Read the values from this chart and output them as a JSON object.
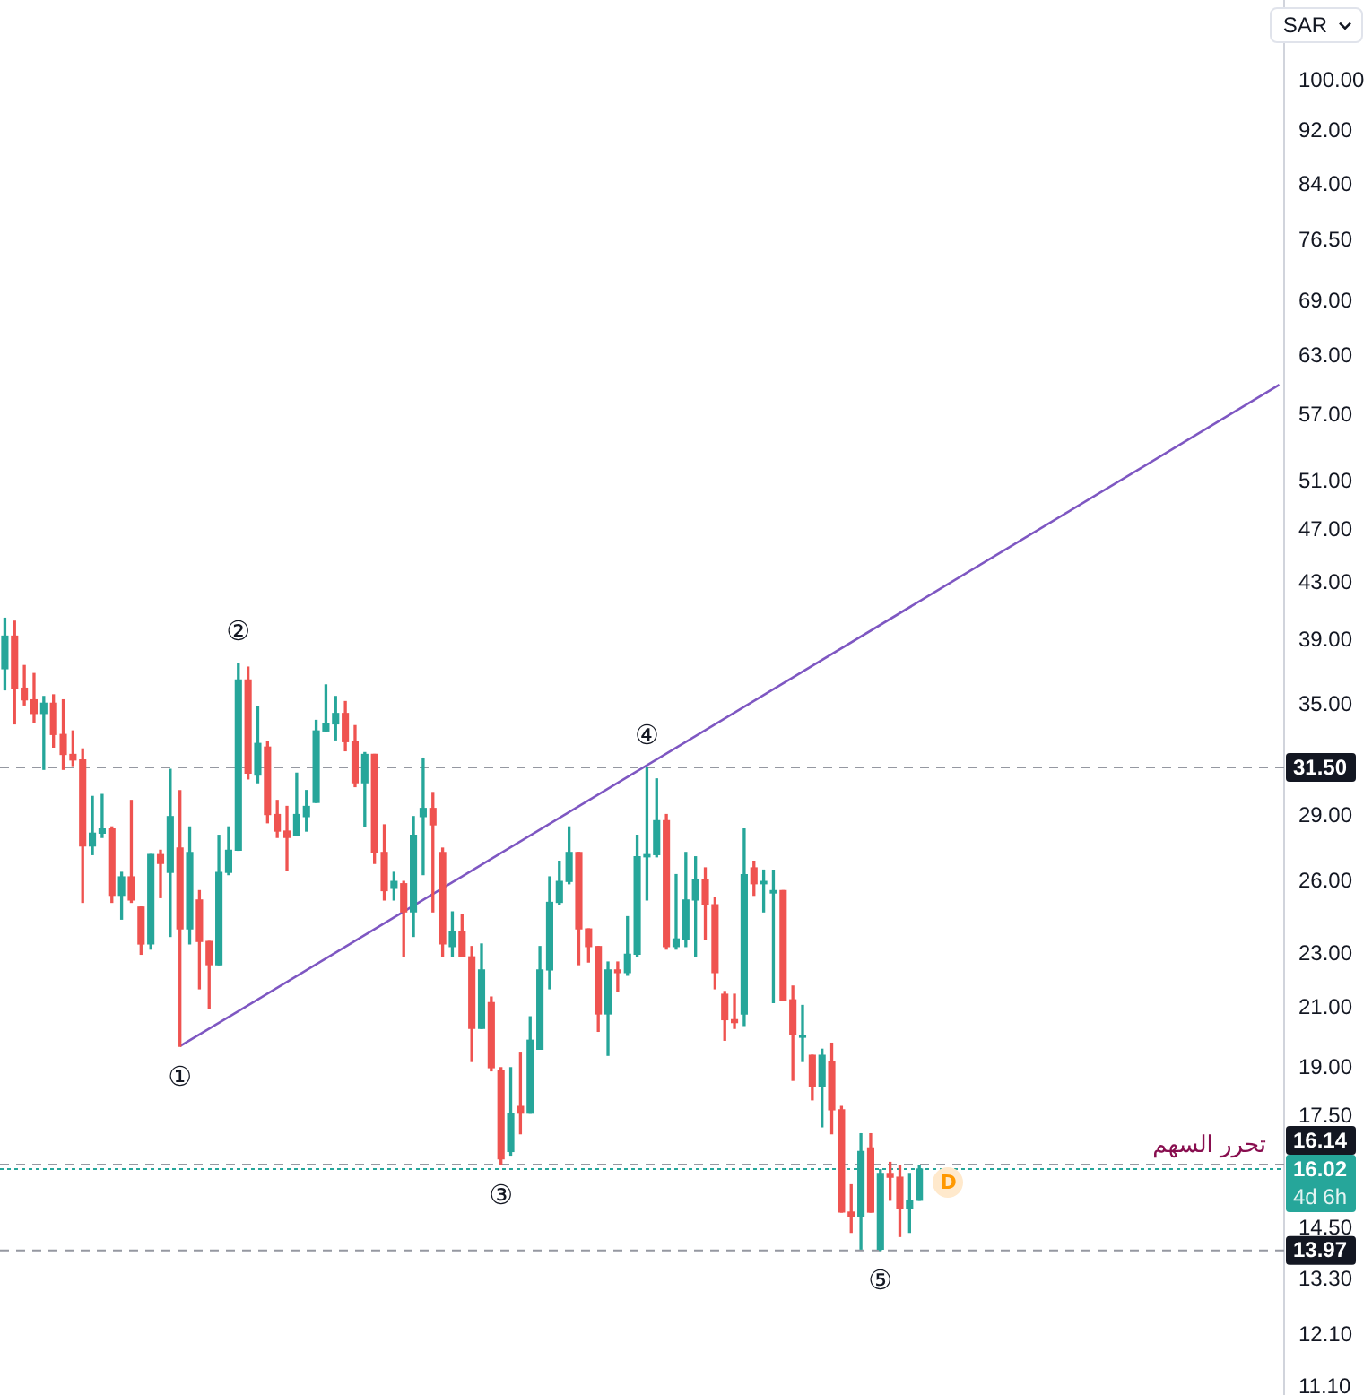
{
  "chart_data": {
    "type": "candlestick",
    "categories": [
      null,
      null,
      null,
      null,
      null,
      null,
      null,
      null,
      null,
      null,
      null,
      null,
      null,
      null,
      null,
      null,
      null,
      null,
      null,
      null,
      null,
      null,
      null,
      null,
      null,
      null,
      null,
      null,
      null,
      null,
      null,
      null,
      null,
      null,
      null,
      null,
      null,
      null,
      null,
      null,
      null,
      null,
      null,
      null,
      null,
      null,
      null,
      null,
      null,
      null,
      null,
      null,
      null,
      null,
      null,
      null,
      null,
      null,
      null,
      null,
      null,
      null,
      null,
      null,
      null,
      null,
      null,
      null,
      null,
      null,
      null,
      null,
      null,
      null,
      null,
      null,
      null,
      null,
      null,
      null,
      null,
      null,
      null,
      null,
      null,
      null,
      null,
      null,
      null,
      null,
      null,
      null,
      null,
      null,
      null,
      null,
      null,
      null,
      null,
      null,
      null,
      null,
      null,
      null,
      null,
      null,
      null,
      null,
      null,
      null,
      null,
      null,
      null,
      null,
      null,
      null,
      null,
      null,
      null,
      null,
      null,
      null,
      null,
      null,
      null,
      null,
      null,
      null,
      null,
      null,
      null,
      null
    ],
    "ohlc": [
      [
        37.2,
        40.5,
        35.9,
        39.3
      ],
      [
        39.3,
        40.3,
        33.9,
        36.0
      ],
      [
        36.0,
        37.4,
        35.0,
        35.3
      ],
      [
        35.3,
        36.9,
        34.0,
        34.5
      ],
      [
        34.5,
        35.5,
        31.4,
        35.1
      ],
      [
        35.1,
        35.6,
        32.6,
        33.3
      ],
      [
        33.3,
        35.3,
        31.4,
        32.2
      ],
      [
        32.2,
        33.5,
        31.6,
        31.9
      ],
      [
        31.9,
        32.5,
        25.1,
        27.6
      ],
      [
        27.6,
        30.0,
        27.2,
        28.2
      ],
      [
        28.2,
        30.1,
        28.0,
        28.4
      ],
      [
        28.4,
        28.5,
        25.1,
        25.4
      ],
      [
        25.4,
        26.4,
        24.4,
        26.2
      ],
      [
        26.2,
        29.8,
        25.1,
        25.2
      ],
      [
        24.9,
        24.9,
        23.0,
        23.4
      ],
      [
        23.4,
        27.2,
        23.2,
        27.2
      ],
      [
        27.2,
        27.4,
        25.3,
        26.8
      ],
      [
        26.4,
        31.4,
        23.7,
        29.0
      ],
      [
        27.5,
        30.3,
        19.7,
        24.0
      ],
      [
        24.0,
        28.5,
        23.4,
        27.3
      ],
      [
        25.2,
        25.6,
        21.7,
        23.5
      ],
      [
        23.5,
        23.5,
        21.0,
        22.6
      ],
      [
        22.6,
        28.1,
        22.6,
        26.4
      ],
      [
        26.4,
        28.5,
        26.3,
        27.4
      ],
      [
        27.4,
        37.5,
        27.4,
        36.5
      ],
      [
        36.5,
        37.3,
        30.9,
        31.2
      ],
      [
        31.1,
        34.9,
        30.7,
        32.8
      ],
      [
        32.6,
        32.9,
        28.7,
        29.1
      ],
      [
        29.1,
        29.8,
        28.0,
        28.3
      ],
      [
        28.3,
        29.5,
        26.5,
        28.0
      ],
      [
        28.1,
        31.2,
        28.1,
        29.1
      ],
      [
        29.0,
        30.3,
        28.3,
        29.5
      ],
      [
        29.7,
        34.1,
        29.7,
        33.5
      ],
      [
        33.5,
        36.2,
        33.5,
        33.9
      ],
      [
        33.9,
        35.5,
        33.0,
        34.5
      ],
      [
        34.5,
        35.2,
        32.4,
        32.9
      ],
      [
        32.9,
        33.8,
        30.5,
        30.7
      ],
      [
        30.7,
        32.3,
        28.5,
        32.2
      ],
      [
        32.2,
        32.2,
        26.8,
        27.3
      ],
      [
        27.3,
        28.6,
        25.2,
        25.6
      ],
      [
        25.7,
        26.4,
        25.2,
        26.0
      ],
      [
        25.9,
        26.0,
        22.9,
        24.7
      ],
      [
        24.7,
        29.0,
        23.7,
        28.1
      ],
      [
        29.0,
        32.0,
        26.3,
        29.4
      ],
      [
        29.4,
        30.2,
        24.7,
        28.6
      ],
      [
        27.3,
        27.5,
        22.9,
        23.4
      ],
      [
        23.3,
        24.7,
        22.9,
        23.9
      ],
      [
        23.9,
        24.6,
        22.9,
        22.9
      ],
      [
        22.9,
        23.3,
        19.2,
        20.3
      ],
      [
        20.3,
        23.4,
        20.3,
        22.4
      ],
      [
        21.2,
        21.4,
        18.9,
        19.0
      ],
      [
        18.9,
        19.0,
        16.14,
        16.3
      ],
      [
        16.5,
        19.0,
        16.4,
        17.6
      ],
      [
        17.8,
        19.5,
        17.0,
        17.6
      ],
      [
        17.6,
        20.7,
        17.6,
        19.9
      ],
      [
        19.6,
        23.3,
        19.6,
        22.4
      ],
      [
        22.4,
        26.2,
        21.7,
        25.1
      ],
      [
        25.1,
        26.9,
        25.0,
        26.0
      ],
      [
        26.0,
        28.5,
        25.9,
        27.3
      ],
      [
        27.3,
        27.3,
        22.6,
        24.0
      ],
      [
        24.0,
        24.0,
        22.7,
        23.3
      ],
      [
        23.3,
        23.3,
        20.2,
        20.8
      ],
      [
        20.8,
        22.7,
        19.4,
        22.4
      ],
      [
        22.4,
        22.7,
        21.6,
        22.3
      ],
      [
        22.3,
        24.5,
        22.2,
        23.0
      ],
      [
        23.0,
        28.1,
        22.9,
        27.1
      ],
      [
        27.1,
        31.5,
        25.2,
        27.2
      ],
      [
        27.2,
        30.9,
        27.1,
        28.8
      ],
      [
        28.8,
        29.1,
        23.2,
        23.3
      ],
      [
        23.3,
        26.3,
        23.2,
        23.6
      ],
      [
        23.6,
        27.3,
        23.3,
        25.2
      ],
      [
        25.2,
        27.1,
        22.9,
        26.1
      ],
      [
        26.1,
        26.6,
        23.6,
        25.0
      ],
      [
        25.0,
        25.3,
        21.7,
        22.3
      ],
      [
        21.5,
        21.6,
        19.9,
        20.6
      ],
      [
        20.6,
        21.5,
        20.3,
        20.5
      ],
      [
        20.8,
        28.4,
        20.4,
        26.3
      ],
      [
        26.6,
        26.9,
        25.4,
        25.9
      ],
      [
        25.9,
        26.5,
        24.7,
        26.0
      ],
      [
        25.5,
        26.5,
        21.2,
        25.6
      ],
      [
        25.6,
        25.6,
        21.3,
        21.3
      ],
      [
        21.3,
        21.8,
        18.6,
        20.1
      ],
      [
        20.0,
        21.1,
        19.2,
        20.0
      ],
      [
        19.4,
        19.4,
        18.0,
        18.4
      ],
      [
        18.4,
        19.6,
        17.2,
        19.4
      ],
      [
        19.2,
        19.8,
        17.0,
        17.7
      ],
      [
        17.7,
        17.8,
        14.9,
        14.9
      ],
      [
        14.9,
        15.6,
        14.4,
        14.8
      ],
      [
        14.8,
        17.0,
        14.0,
        16.5
      ],
      [
        16.6,
        17.0,
        14.9,
        14.9
      ],
      [
        14.0,
        16.0,
        13.97,
        15.9
      ],
      [
        15.9,
        16.2,
        15.2,
        15.8
      ],
      [
        15.8,
        16.1,
        14.3,
        15.0
      ],
      [
        15.0,
        15.9,
        14.4,
        15.2
      ],
      [
        15.2,
        16.1,
        15.2,
        16.02
      ],
      null,
      null,
      null,
      null,
      null,
      null,
      null,
      null,
      null,
      null,
      null,
      null,
      null,
      null,
      null,
      null,
      null,
      null,
      null,
      null,
      null,
      null,
      null,
      null,
      null,
      null,
      null,
      null,
      null,
      null,
      null,
      null,
      null,
      null,
      null,
      null,
      null
    ],
    "colors": [
      "#26a69a",
      "#ef5350",
      "#ef5350",
      "#ef5350",
      "#26a69a",
      "#ef5350",
      "#ef5350",
      "#ef5350",
      "#ef5350",
      "#26a69a",
      "#26a69a",
      "#ef5350",
      "#26a69a",
      "#ef5350",
      "#ef5350",
      "#26a69a",
      "#ef5350",
      "#26a69a",
      "#ef5350",
      "#26a69a",
      "#ef5350",
      "#ef5350",
      "#26a69a",
      "#26a69a",
      "#26a69a",
      "#ef5350",
      "#26a69a",
      "#ef5350",
      "#ef5350",
      "#ef5350",
      "#26a69a",
      "#26a69a",
      "#26a69a",
      "#26a69a",
      "#26a69a",
      "#ef5350",
      "#ef5350",
      "#26a69a",
      "#ef5350",
      "#ef5350",
      "#26a69a",
      "#ef5350",
      "#26a69a",
      "#26a69a",
      "#ef5350",
      "#ef5350",
      "#26a69a",
      "#ef5350",
      "#ef5350",
      "#26a69a",
      "#ef5350",
      "#ef5350",
      "#26a69a",
      "#ef5350",
      "#26a69a",
      "#26a69a",
      "#26a69a",
      "#26a69a",
      "#26a69a",
      "#ef5350",
      "#ef5350",
      "#ef5350",
      "#26a69a",
      "#ef5350",
      "#26a69a",
      "#26a69a",
      "#26a69a",
      "#26a69a",
      "#ef5350",
      "#26a69a",
      "#26a69a",
      "#26a69a",
      "#ef5350",
      "#ef5350",
      "#ef5350",
      "#ef5350",
      "#26a69a",
      "#ef5350",
      "#26a69a",
      "#26a69a",
      "#ef5350",
      "#ef5350",
      "#26a69a",
      "#ef5350",
      "#26a69a",
      "#ef5350",
      "#ef5350",
      "#ef5350",
      "#26a69a",
      "#ef5350",
      "#26a69a",
      "#ef5350",
      "#ef5350",
      "#26a69a",
      "#26a69a",
      null,
      null,
      null,
      null,
      null,
      null,
      null,
      null,
      null,
      null,
      null,
      null,
      null,
      null,
      null,
      null,
      null,
      null,
      null,
      null,
      null,
      null,
      null,
      null,
      null,
      null,
      null,
      null,
      null,
      null,
      null,
      null,
      null,
      null,
      null,
      null,
      null
    ],
    "series": [
      {
        "type": "line",
        "color": "#7e57c2",
        "values": [
          null,
          null,
          null,
          null,
          null,
          null,
          null,
          null,
          null,
          null,
          null,
          null,
          null,
          null,
          null,
          null,
          null,
          null,
          19.7,
          null,
          null,
          null,
          null,
          null,
          null,
          null,
          null,
          null,
          null,
          null,
          null,
          null,
          null,
          null,
          null,
          null,
          null,
          null,
          null,
          null,
          null,
          null,
          null,
          null,
          null,
          null,
          null,
          null,
          null,
          null,
          null,
          null,
          null,
          null,
          null,
          null,
          null,
          null,
          null,
          null,
          null,
          null,
          null,
          null,
          null,
          null,
          null,
          null,
          null,
          null,
          null,
          null,
          null,
          null,
          null,
          null,
          null,
          null,
          null,
          null,
          null,
          null,
          null,
          null,
          null,
          null,
          null,
          null,
          null,
          null,
          null,
          null,
          null,
          null,
          null,
          null,
          null,
          null,
          null,
          null,
          null,
          null,
          null,
          null,
          null,
          null,
          null,
          null,
          null,
          null,
          null,
          null,
          null,
          null,
          null,
          null,
          null,
          null,
          null,
          null,
          null,
          null,
          null,
          null,
          null,
          null,
          null,
          null,
          null,
          null,
          null,
          60
        ]
      }
    ],
    "log": true,
    "ylim": [
      10.95,
      114.7
    ],
    "yticks": [
      {
        "value": 100,
        "label": "100.00"
      },
      {
        "value": 92,
        "label": "92.00"
      },
      {
        "value": 84,
        "label": "84.00"
      },
      {
        "value": 76.5,
        "label": "76.50"
      },
      {
        "value": 69,
        "label": "69.00"
      },
      {
        "value": 63,
        "label": "63.00"
      },
      {
        "value": 57,
        "label": "57.00"
      },
      {
        "value": 51,
        "label": "51.00"
      },
      {
        "value": 47,
        "label": "47.00"
      },
      {
        "value": 43,
        "label": "43.00"
      },
      {
        "value": 39,
        "label": "39.00"
      },
      {
        "value": 35,
        "label": "35.00"
      },
      {
        "value": 29,
        "label": "29.00"
      },
      {
        "value": 26,
        "label": "26.00"
      },
      {
        "value": 23,
        "label": "23.00"
      },
      {
        "value": 21,
        "label": "21.00"
      },
      {
        "value": 19,
        "label": "19.00"
      },
      {
        "value": 17.5,
        "label": "17.50"
      },
      {
        "value": 14.5,
        "label": "14.50"
      },
      {
        "value": 13.3,
        "label": "13.30"
      },
      {
        "value": 12.1,
        "label": "12.10"
      },
      {
        "value": 11.1,
        "label": "11.10"
      }
    ],
    "tick_labels": "y",
    "ylabel": "SAR",
    "ref_lines": [
      {
        "axis": "y",
        "value": 31.5,
        "label": "31.50",
        "color": "#9598a1",
        "line_style": "dashed"
      },
      {
        "axis": "y",
        "value": 16.14,
        "label": "16.14",
        "color": "#9598a1",
        "line_style": "dashed"
      },
      {
        "axis": "y",
        "value": 16.02,
        "label": "16.02",
        "color": "#26a69a",
        "line_style": "dotted"
      },
      {
        "axis": "y",
        "value": 13.97,
        "label": "13.97",
        "color": "#9598a1",
        "line_style": "dashed"
      }
    ],
    "annotations": [
      {
        "text": "①",
        "y": 19.7
      },
      {
        "text": "②",
        "y": 37.5
      },
      {
        "text": "③",
        "y": 16.14
      },
      {
        "text": "④",
        "y": 31.5
      },
      {
        "text": "⑤",
        "y": 13.97
      },
      {
        "text": "تحرر السهم",
        "y": 16.14
      },
      "4d 6h",
      "D"
    ]
  }
}
